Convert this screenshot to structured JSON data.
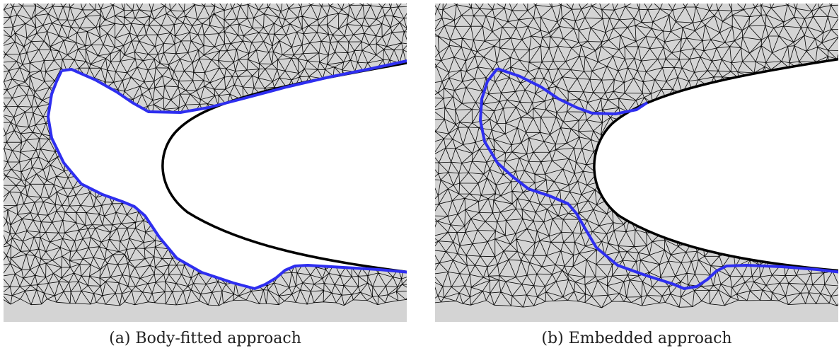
{
  "figures": [
    {
      "caption": "(a) Body-fitted approach",
      "mesh_fill": "#d4d4d4",
      "edge_color": "#000000",
      "boundary_color": "#2e2ef0",
      "body_color": "#000000",
      "body_interior_meshed": false,
      "fitted_region_meshed": false
    },
    {
      "caption": "(b) Embedded approach",
      "mesh_fill": "#d4d4d4",
      "edge_color": "#000000",
      "boundary_color": "#2e2ef0",
      "body_color": "#000000",
      "body_interior_meshed": false,
      "fitted_region_meshed": true
    }
  ]
}
